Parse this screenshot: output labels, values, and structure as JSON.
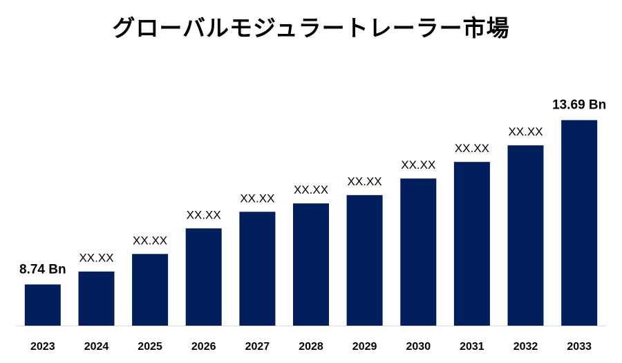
{
  "chart_data": {
    "type": "bar",
    "title": "グローバルモジュラートレーラー市場",
    "xlabel": "",
    "ylabel": "",
    "categories": [
      "2023",
      "2024",
      "2025",
      "2026",
      "2027",
      "2028",
      "2029",
      "2030",
      "2031",
      "2032",
      "2033"
    ],
    "values": [
      8.74,
      9.13,
      9.66,
      10.43,
      10.93,
      11.18,
      11.43,
      11.93,
      12.43,
      12.93,
      13.69
    ],
    "data_labels": [
      "8.74 Bn",
      "XX.XX",
      "XX.XX",
      "XX.XX",
      "XX.XX",
      "XX.XX",
      "XX.XX",
      "XX.XX",
      "XX.XX",
      "XX.XX",
      "13.69 Bn"
    ],
    "ylim": [
      7.5,
      14.1
    ],
    "grid": false,
    "legend": "none",
    "bar_color": "#001f5c",
    "axis_color": "#d9d9d9"
  }
}
